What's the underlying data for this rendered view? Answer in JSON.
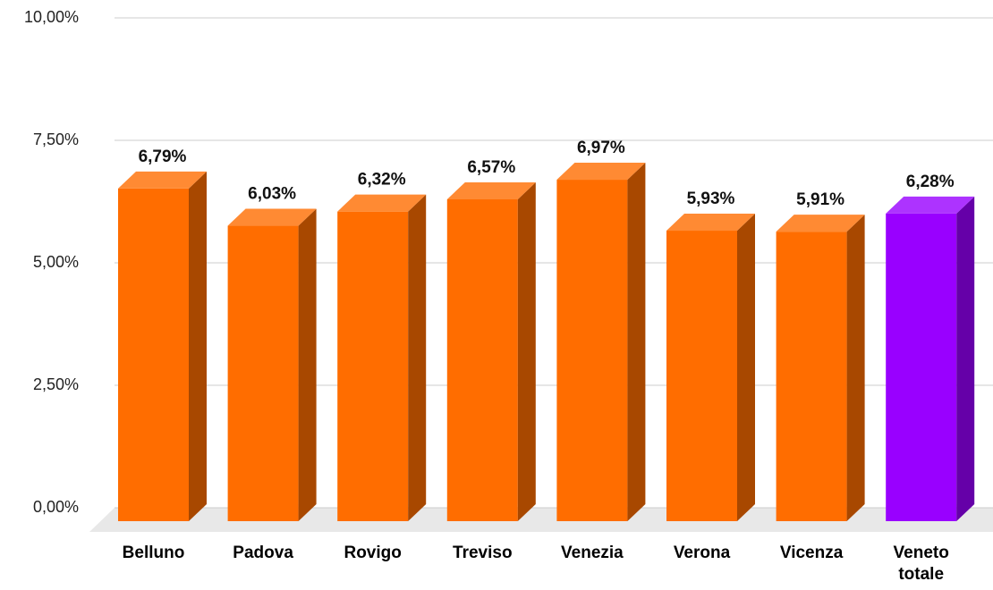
{
  "chart_data": {
    "type": "bar3d",
    "categories": [
      "Belluno",
      "Padova",
      "Rovigo",
      "Treviso",
      "Venezia",
      "Verona",
      "Vicenza",
      "Veneto totale"
    ],
    "values": [
      6.79,
      6.03,
      6.32,
      6.57,
      6.97,
      5.93,
      5.91,
      6.28
    ],
    "value_labels": [
      "6,79%",
      "6,03%",
      "6,32%",
      "6,57%",
      "6,97%",
      "5,93%",
      "5,91%",
      "6,28%"
    ],
    "colors": [
      "#ff6d00",
      "#ff6d00",
      "#ff6d00",
      "#ff6d00",
      "#ff6d00",
      "#ff6d00",
      "#ff6d00",
      "#9900ff"
    ],
    "ylim": [
      0,
      10
    ],
    "yticks": [
      {
        "value": 0,
        "label": "0,00%"
      },
      {
        "value": 2.5,
        "label": "2,50%"
      },
      {
        "value": 5,
        "label": "5,00%"
      },
      {
        "value": 7.5,
        "label": "7,50%"
      },
      {
        "value": 10,
        "label": "10,00%"
      }
    ],
    "grid": true
  }
}
